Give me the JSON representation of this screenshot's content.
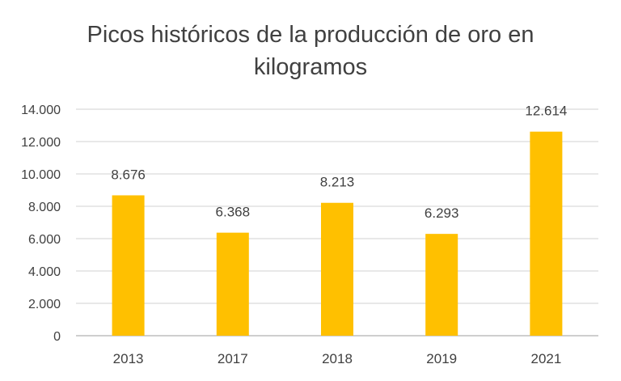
{
  "chart_data": {
    "type": "bar",
    "title_lines": [
      "Picos históricos de la producción de oro en",
      "kilogramos"
    ],
    "categories": [
      "2013",
      "2017",
      "2018",
      "2019",
      "2021"
    ],
    "values": [
      8676,
      6368,
      8213,
      6293,
      12614
    ],
    "data_labels": [
      "8.676",
      "6.368",
      "8.213",
      "6.293",
      "12.614"
    ],
    "y_ticks": [
      0,
      2000,
      4000,
      6000,
      8000,
      10000,
      12000,
      14000
    ],
    "y_tick_labels": [
      "0",
      "2.000",
      "4.000",
      "6.000",
      "8.000",
      "10.000",
      "12.000",
      "14.000"
    ],
    "ylim": [
      0,
      14000
    ],
    "grid": true,
    "legend": false,
    "bar_color": "#FFC000",
    "text_color": "#404040"
  }
}
